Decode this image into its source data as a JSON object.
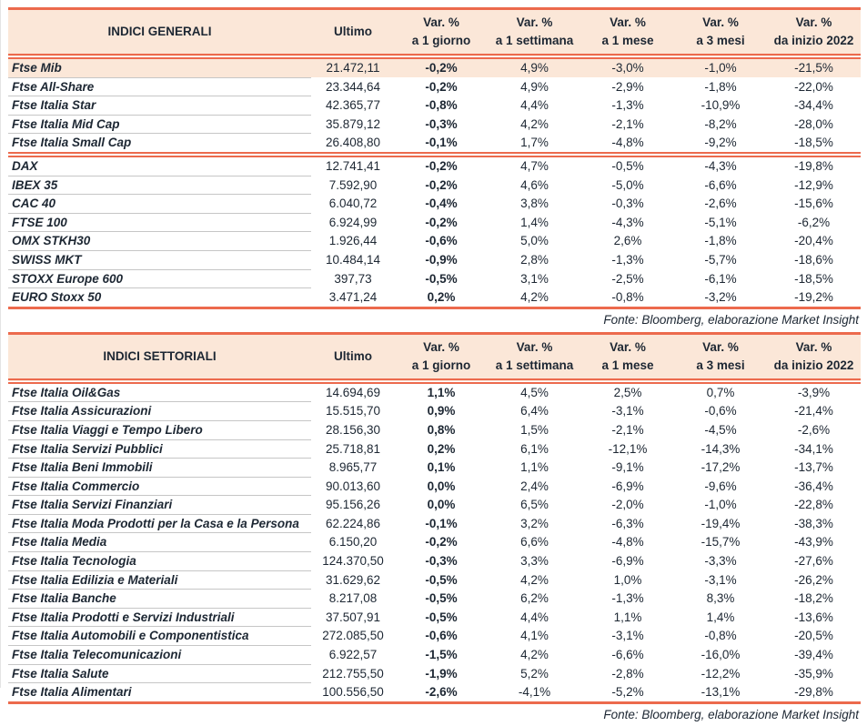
{
  "colors": {
    "accent": "#ec6a4d",
    "header_bg": "#fbe7d8",
    "text": "#1d2733",
    "row_divider": "#c6c6c6"
  },
  "columns": {
    "ultimo": "Ultimo",
    "vars": [
      {
        "line1": "Var. %",
        "line2": "a 1 giorno"
      },
      {
        "line1": "Var. %",
        "line2": "a 1 settimana"
      },
      {
        "line1": "Var. %",
        "line2": "a 1 mese"
      },
      {
        "line1": "Var. %",
        "line2": "a 3 mesi"
      },
      {
        "line1": "Var. %",
        "line2": "da inizio 2022"
      }
    ]
  },
  "tables": [
    {
      "title": "INDICI GENERALI",
      "source_note": "Fonte: Bloomberg, elaborazione Market Insight",
      "groups": [
        {
          "rows": [
            {
              "name": "Ftse Mib",
              "ultimo": "21.472,11",
              "values": [
                "-0,2%",
                "4,9%",
                "-3,0%",
                "-1,0%",
                "-21,5%"
              ],
              "highlight": true
            },
            {
              "name": "Ftse All-Share",
              "ultimo": "23.344,64",
              "values": [
                "-0,2%",
                "4,9%",
                "-2,9%",
                "-1,8%",
                "-22,0%"
              ]
            },
            {
              "name": "Ftse Italia Star",
              "ultimo": "42.365,77",
              "values": [
                "-0,8%",
                "4,4%",
                "-1,3%",
                "-10,9%",
                "-34,4%"
              ]
            },
            {
              "name": "Ftse Italia Mid Cap",
              "ultimo": "35.879,12",
              "values": [
                "-0,3%",
                "4,2%",
                "-2,1%",
                "-8,2%",
                "-28,0%"
              ]
            },
            {
              "name": "Ftse Italia Small Cap",
              "ultimo": "26.408,80",
              "values": [
                "-0,1%",
                "1,7%",
                "-4,8%",
                "-9,2%",
                "-18,5%"
              ]
            }
          ]
        },
        {
          "rows": [
            {
              "name": "DAX",
              "ultimo": "12.741,41",
              "values": [
                "-0,2%",
                "4,7%",
                "-0,5%",
                "-4,3%",
                "-19,8%"
              ]
            },
            {
              "name": "IBEX 35",
              "ultimo": "7.592,90",
              "values": [
                "-0,2%",
                "4,6%",
                "-5,0%",
                "-6,6%",
                "-12,9%"
              ]
            },
            {
              "name": "CAC 40",
              "ultimo": "6.040,72",
              "values": [
                "-0,4%",
                "3,8%",
                "-0,3%",
                "-2,6%",
                "-15,6%"
              ]
            },
            {
              "name": "FTSE 100",
              "ultimo": "6.924,99",
              "values": [
                "-0,2%",
                "1,4%",
                "-4,3%",
                "-5,1%",
                "-6,2%"
              ]
            },
            {
              "name": "OMX STKH30",
              "ultimo": "1.926,44",
              "values": [
                "-0,6%",
                "5,0%",
                "2,6%",
                "-1,8%",
                "-20,4%"
              ]
            },
            {
              "name": "SWISS MKT",
              "ultimo": "10.484,14",
              "values": [
                "-0,9%",
                "2,8%",
                "-1,3%",
                "-5,7%",
                "-18,6%"
              ]
            },
            {
              "name": "STOXX Europe 600",
              "ultimo": "397,73",
              "values": [
                "-0,5%",
                "3,1%",
                "-2,5%",
                "-6,1%",
                "-18,5%"
              ]
            },
            {
              "name": "EURO Stoxx 50",
              "ultimo": "3.471,24",
              "values": [
                "0,2%",
                "4,2%",
                "-0,8%",
                "-3,2%",
                "-19,2%"
              ]
            }
          ]
        }
      ]
    },
    {
      "title": "INDICI SETTORIALI",
      "source_note": "Fonte: Bloomberg, elaborazione Market Insight",
      "groups": [
        {
          "rows": [
            {
              "name": "Ftse Italia Oil&Gas",
              "ultimo": "14.694,69",
              "values": [
                "1,1%",
                "4,5%",
                "2,5%",
                "0,7%",
                "-3,9%"
              ]
            },
            {
              "name": "Ftse Italia Assicurazioni",
              "ultimo": "15.515,70",
              "values": [
                "0,9%",
                "6,4%",
                "-3,1%",
                "-0,6%",
                "-21,4%"
              ]
            },
            {
              "name": "Ftse Italia Viaggi e Tempo Libero",
              "ultimo": "28.156,30",
              "values": [
                "0,8%",
                "1,5%",
                "-2,1%",
                "-4,5%",
                "-2,6%"
              ]
            },
            {
              "name": "Ftse Italia Servizi Pubblici",
              "ultimo": "25.718,81",
              "values": [
                "0,2%",
                "6,1%",
                "-12,1%",
                "-14,3%",
                "-34,1%"
              ]
            },
            {
              "name": "Ftse Italia Beni Immobili",
              "ultimo": "8.965,77",
              "values": [
                "0,1%",
                "1,1%",
                "-9,1%",
                "-17,2%",
                "-13,7%"
              ]
            },
            {
              "name": "Ftse Italia Commercio",
              "ultimo": "90.013,60",
              "values": [
                "0,0%",
                "2,4%",
                "-6,9%",
                "-9,6%",
                "-36,4%"
              ]
            },
            {
              "name": "Ftse Italia Servizi Finanziari",
              "ultimo": "95.156,26",
              "values": [
                "0,0%",
                "6,5%",
                "-2,0%",
                "-1,0%",
                "-22,8%"
              ]
            },
            {
              "name": "Ftse Italia Moda Prodotti per la Casa e la Persona",
              "ultimo": "62.224,86",
              "values": [
                "-0,1%",
                "3,2%",
                "-6,3%",
                "-19,4%",
                "-38,3%"
              ]
            },
            {
              "name": "Ftse Italia Media",
              "ultimo": "6.150,20",
              "values": [
                "-0,2%",
                "6,6%",
                "-4,8%",
                "-15,7%",
                "-43,9%"
              ]
            },
            {
              "name": "Ftse Italia Tecnologia",
              "ultimo": "124.370,50",
              "values": [
                "-0,3%",
                "3,3%",
                "-6,9%",
                "-3,3%",
                "-27,6%"
              ]
            },
            {
              "name": "Ftse Italia Edilizia e Materiali",
              "ultimo": "31.629,62",
              "values": [
                "-0,5%",
                "4,2%",
                "1,0%",
                "-3,1%",
                "-26,2%"
              ]
            },
            {
              "name": "Ftse Italia Banche",
              "ultimo": "8.217,08",
              "values": [
                "-0,5%",
                "6,2%",
                "-1,3%",
                "8,3%",
                "-18,2%"
              ]
            },
            {
              "name": "Ftse Italia Prodotti e Servizi Industriali",
              "ultimo": "37.507,91",
              "values": [
                "-0,5%",
                "4,4%",
                "1,1%",
                "1,4%",
                "-13,6%"
              ]
            },
            {
              "name": "Ftse Italia Automobili e Componentistica",
              "ultimo": "272.085,50",
              "values": [
                "-0,6%",
                "4,1%",
                "-3,1%",
                "-0,8%",
                "-20,5%"
              ]
            },
            {
              "name": "Ftse Italia Telecomunicazioni",
              "ultimo": "6.922,57",
              "values": [
                "-1,5%",
                "4,2%",
                "-6,6%",
                "-16,0%",
                "-39,4%"
              ]
            },
            {
              "name": "Ftse Italia Salute",
              "ultimo": "212.755,50",
              "values": [
                "-1,9%",
                "5,2%",
                "-2,8%",
                "-12,2%",
                "-35,9%"
              ]
            },
            {
              "name": "Ftse Italia Alimentari",
              "ultimo": "100.556,50",
              "values": [
                "-2,6%",
                "-4,1%",
                "-5,2%",
                "-13,1%",
                "-29,8%"
              ]
            }
          ]
        }
      ]
    }
  ]
}
